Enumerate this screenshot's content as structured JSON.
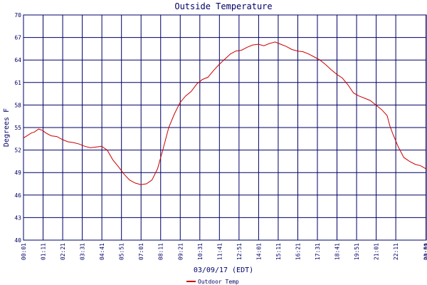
{
  "chart_data": {
    "type": "line",
    "title": "Outside Temperature",
    "xlabel": "03/09/17 (EDT)",
    "ylabel": "Degrees F",
    "ylim": [
      40,
      70
    ],
    "xlim": [
      1,
      1440
    ],
    "grid": true,
    "legend_position": "bottom-left",
    "colors": {
      "line": "#cc0000",
      "grid": "#000066",
      "text": "#000066"
    },
    "y_ticks": [
      40,
      43,
      46,
      49,
      52,
      55,
      58,
      61,
      64,
      67,
      70
    ],
    "x_ticks": [
      {
        "label": "00:01",
        "minute": 1
      },
      {
        "label": "01:11",
        "minute": 71
      },
      {
        "label": "02:21",
        "minute": 141
      },
      {
        "label": "03:31",
        "minute": 211
      },
      {
        "label": "04:41",
        "minute": 281
      },
      {
        "label": "05:51",
        "minute": 351
      },
      {
        "label": "07:01",
        "minute": 421
      },
      {
        "label": "08:11",
        "minute": 491
      },
      {
        "label": "09:21",
        "minute": 561
      },
      {
        "label": "10:31",
        "minute": 631
      },
      {
        "label": "11:41",
        "minute": 701
      },
      {
        "label": "12:51",
        "minute": 771
      },
      {
        "label": "14:01",
        "minute": 841
      },
      {
        "label": "15:11",
        "minute": 911
      },
      {
        "label": "16:21",
        "minute": 981
      },
      {
        "label": "17:31",
        "minute": 1051
      },
      {
        "label": "18:41",
        "minute": 1121
      },
      {
        "label": "19:51",
        "minute": 1191
      },
      {
        "label": "21:01",
        "minute": 1261
      },
      {
        "label": "22:11",
        "minute": 1331
      },
      {
        "label": "00:01",
        "minute": 1440
      },
      {
        "label": "23:59",
        "minute": 1439
      }
    ],
    "series": [
      {
        "name": "Outdoor Temp",
        "x": [
          1,
          30,
          40,
          55,
          70,
          80,
          100,
          120,
          140,
          160,
          180,
          200,
          220,
          240,
          260,
          280,
          300,
          320,
          340,
          360,
          380,
          400,
          420,
          440,
          460,
          480,
          500,
          520,
          540,
          560,
          580,
          600,
          620,
          640,
          660,
          680,
          700,
          720,
          740,
          760,
          780,
          800,
          820,
          840,
          860,
          880,
          900,
          920,
          940,
          960,
          980,
          1000,
          1020,
          1040,
          1060,
          1080,
          1100,
          1120,
          1140,
          1160,
          1180,
          1200,
          1220,
          1240,
          1260,
          1280,
          1300,
          1310,
          1320,
          1340,
          1360,
          1380,
          1400,
          1420,
          1439
        ],
        "y": [
          53.6,
          54.3,
          54.4,
          54.8,
          54.6,
          54.3,
          53.9,
          53.8,
          53.4,
          53.1,
          53.0,
          52.8,
          52.5,
          52.3,
          52.4,
          52.5,
          52.0,
          50.7,
          49.8,
          48.8,
          48.0,
          47.6,
          47.4,
          47.5,
          48.0,
          49.5,
          52.2,
          55.0,
          56.8,
          58.3,
          59.2,
          59.8,
          60.8,
          61.4,
          61.7,
          62.6,
          63.4,
          64.1,
          64.8,
          65.2,
          65.3,
          65.7,
          66.0,
          66.1,
          65.9,
          66.2,
          66.4,
          66.1,
          65.8,
          65.4,
          65.2,
          65.1,
          64.8,
          64.4,
          64.0,
          63.4,
          62.7,
          62.1,
          61.6,
          60.7,
          59.6,
          59.2,
          58.9,
          58.6,
          58.0,
          57.4,
          56.6,
          55.2,
          54.2,
          52.4,
          51.0,
          50.5,
          50.1,
          49.9,
          49.5
        ]
      }
    ]
  }
}
